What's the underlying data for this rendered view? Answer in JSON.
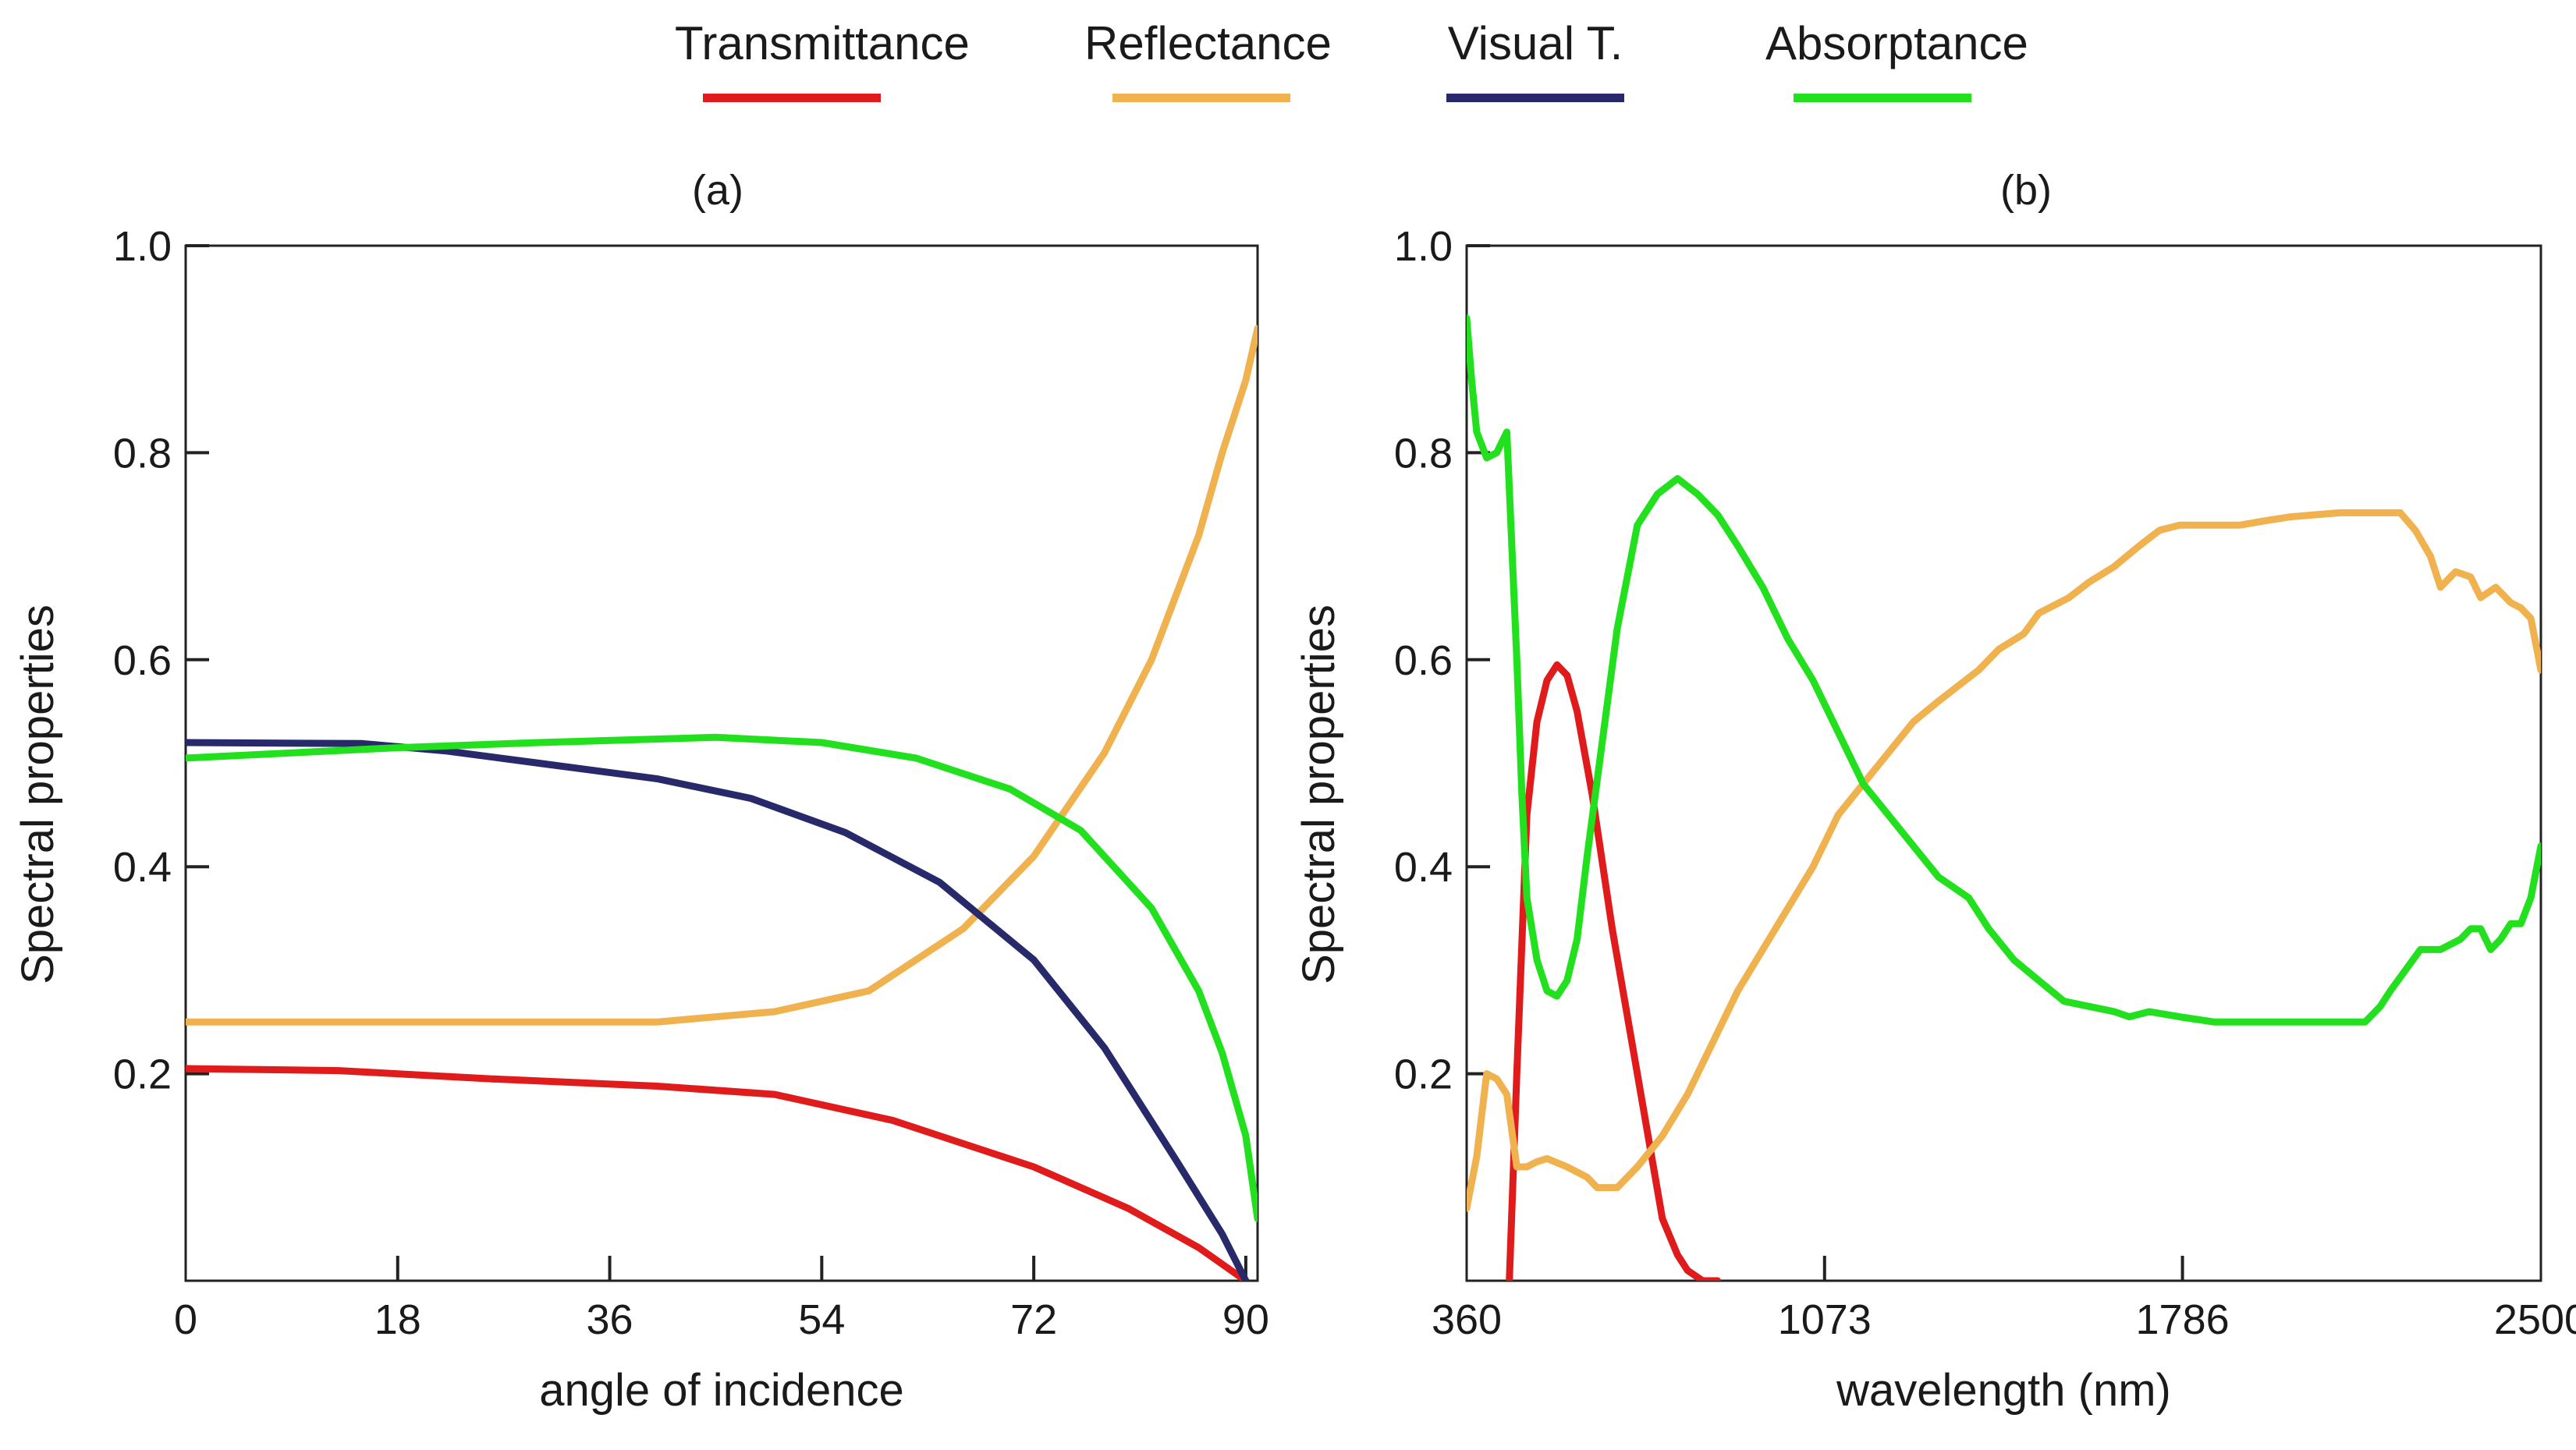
{
  "legend": [
    {
      "label": "Transmittance",
      "color": "#e01b1b"
    },
    {
      "label": "Reflectance",
      "color": "#f0b14f"
    },
    {
      "label": "Visual T.",
      "color": "#27296b"
    },
    {
      "label": "Absorptance",
      "color": "#22e01e"
    }
  ],
  "chart_data": [
    {
      "type": "line",
      "panel_label": "(a)",
      "xlabel": "angle of incidence",
      "ylabel": "Spectral properties",
      "xlim": [
        0,
        91
      ],
      "ylim": [
        0,
        1.0
      ],
      "xticks": [
        0,
        18,
        36,
        54,
        72,
        90
      ],
      "yticks": [
        0.2,
        0.4,
        0.6,
        0.8,
        1.0
      ],
      "ytick_labels": [
        "0.2",
        "0.4",
        "0.6",
        "0.8",
        "1.0"
      ],
      "grid": false,
      "series": [
        {
          "name": "Transmittance",
          "color": "#e01b1b",
          "x": [
            0,
            13,
            26,
            40,
            50,
            60,
            72,
            80,
            86,
            90
          ],
          "y": [
            0.205,
            0.203,
            0.195,
            0.188,
            0.18,
            0.155,
            0.11,
            0.07,
            0.032,
            0
          ]
        },
        {
          "name": "Reflectance",
          "color": "#f0b14f",
          "x": [
            0,
            20,
            40,
            50,
            58,
            66,
            72,
            78,
            82,
            86,
            88,
            90,
            91
          ],
          "y": [
            0.25,
            0.25,
            0.25,
            0.26,
            0.28,
            0.34,
            0.41,
            0.51,
            0.6,
            0.72,
            0.8,
            0.87,
            0.92
          ]
        },
        {
          "name": "Visual T.",
          "color": "#27296b",
          "x": [
            0,
            15,
            22,
            30,
            40,
            48,
            56,
            64,
            72,
            78,
            84,
            88,
            90
          ],
          "y": [
            0.52,
            0.519,
            0.512,
            0.5,
            0.485,
            0.466,
            0.433,
            0.385,
            0.31,
            0.225,
            0.118,
            0.045,
            0
          ]
        },
        {
          "name": "Absorptance",
          "color": "#22e01e",
          "x": [
            0,
            18,
            30,
            45,
            54,
            62,
            70,
            76,
            82,
            86,
            88,
            90,
            91
          ],
          "y": [
            0.505,
            0.515,
            0.52,
            0.525,
            0.52,
            0.505,
            0.475,
            0.435,
            0.36,
            0.28,
            0.22,
            0.14,
            0.06
          ]
        }
      ]
    },
    {
      "type": "line",
      "panel_label": "(b)",
      "xlabel": "wavelength (nm)",
      "ylabel": "Spectral properties",
      "xlim": [
        360,
        2500
      ],
      "ylim": [
        0,
        1.0
      ],
      "xticks": [
        360,
        1073,
        1786,
        2500
      ],
      "yticks": [
        0.2,
        0.4,
        0.6,
        0.8,
        1.0
      ],
      "ytick_labels": [
        "0.2",
        "0.4",
        "0.6",
        "0.8",
        "1.0"
      ],
      "grid": false,
      "series": [
        {
          "name": "Transmittance",
          "color": "#e01b1b",
          "x": [
            445,
            460,
            480,
            500,
            520,
            540,
            560,
            580,
            610,
            650,
            700,
            750,
            780,
            800,
            830,
            860
          ],
          "y": [
            0,
            0.2,
            0.45,
            0.54,
            0.58,
            0.595,
            0.585,
            0.55,
            0.47,
            0.34,
            0.2,
            0.06,
            0.025,
            0.01,
            0,
            0
          ]
        },
        {
          "name": "Reflectance",
          "color": "#f0b14f",
          "x": [
            360,
            380,
            400,
            420,
            440,
            460,
            480,
            500,
            520,
            560,
            600,
            620,
            660,
            700,
            750,
            800,
            850,
            900,
            950,
            1000,
            1050,
            1100,
            1150,
            1200,
            1250,
            1300,
            1380,
            1420,
            1470,
            1500,
            1560,
            1600,
            1650,
            1700,
            1740,
            1780,
            1820,
            1900,
            1960,
            2000,
            2050,
            2100,
            2150,
            2200,
            2220,
            2250,
            2280,
            2300,
            2330,
            2360,
            2380,
            2410,
            2440,
            2460,
            2480,
            2500
          ],
          "y": [
            0.07,
            0.12,
            0.2,
            0.195,
            0.18,
            0.11,
            0.11,
            0.115,
            0.118,
            0.11,
            0.1,
            0.09,
            0.09,
            0.11,
            0.14,
            0.18,
            0.23,
            0.28,
            0.32,
            0.36,
            0.4,
            0.45,
            0.48,
            0.51,
            0.54,
            0.56,
            0.59,
            0.61,
            0.625,
            0.645,
            0.66,
            0.675,
            0.69,
            0.71,
            0.725,
            0.73,
            0.73,
            0.73,
            0.735,
            0.738,
            0.74,
            0.742,
            0.742,
            0.742,
            0.742,
            0.725,
            0.7,
            0.67,
            0.685,
            0.68,
            0.66,
            0.67,
            0.655,
            0.65,
            0.64,
            0.59
          ]
        },
        {
          "name": "Absorptance",
          "color": "#22e01e",
          "x": [
            360,
            370,
            380,
            400,
            420,
            430,
            440,
            460,
            470,
            480,
            500,
            520,
            540,
            560,
            580,
            600,
            630,
            660,
            700,
            740,
            780,
            820,
            860,
            900,
            950,
            1000,
            1050,
            1100,
            1150,
            1200,
            1250,
            1300,
            1330,
            1360,
            1400,
            1450,
            1500,
            1550,
            1600,
            1650,
            1680,
            1720,
            1780,
            1850,
            1950,
            2050,
            2150,
            2180,
            2200,
            2230,
            2260,
            2300,
            2340,
            2360,
            2380,
            2400,
            2420,
            2440,
            2460,
            2480,
            2500
          ],
          "y": [
            0.93,
            0.87,
            0.82,
            0.795,
            0.8,
            0.81,
            0.82,
            0.6,
            0.47,
            0.37,
            0.31,
            0.28,
            0.275,
            0.29,
            0.33,
            0.41,
            0.52,
            0.63,
            0.73,
            0.76,
            0.775,
            0.76,
            0.74,
            0.71,
            0.67,
            0.62,
            0.58,
            0.53,
            0.48,
            0.45,
            0.42,
            0.39,
            0.38,
            0.37,
            0.34,
            0.31,
            0.29,
            0.27,
            0.265,
            0.26,
            0.255,
            0.26,
            0.255,
            0.25,
            0.25,
            0.25,
            0.25,
            0.265,
            0.28,
            0.3,
            0.32,
            0.32,
            0.33,
            0.34,
            0.34,
            0.32,
            0.33,
            0.345,
            0.345,
            0.37,
            0.42
          ]
        }
      ]
    }
  ]
}
